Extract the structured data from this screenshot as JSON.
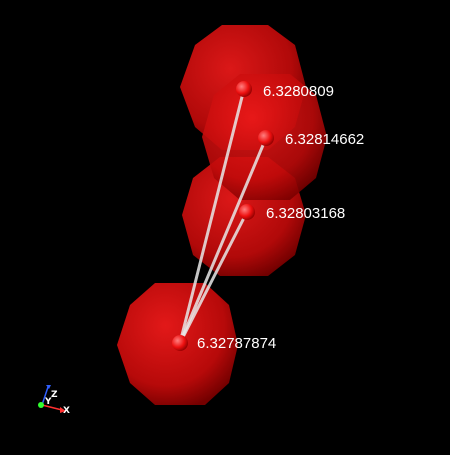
{
  "scene": {
    "background": "#000000",
    "sphere_color": "#d01010",
    "atom_color": "#ff2020",
    "bond_color": "#e8e8e8"
  },
  "atoms": [
    {
      "id": "a1",
      "value": "6.3280809"
    },
    {
      "id": "a2",
      "value": "6.32814662"
    },
    {
      "id": "a3",
      "value": "6.32803168"
    },
    {
      "id": "a4",
      "value": "6.32787874"
    }
  ],
  "bonds": [
    {
      "from": "a4",
      "to": "a1"
    },
    {
      "from": "a4",
      "to": "a2"
    },
    {
      "from": "a4",
      "to": "a3"
    }
  ],
  "axes": {
    "x_label": "X",
    "y_label": "Y",
    "z_label": "Z",
    "x_color": "#ff3030",
    "y_color": "#30ff30",
    "z_color": "#3060ff"
  }
}
